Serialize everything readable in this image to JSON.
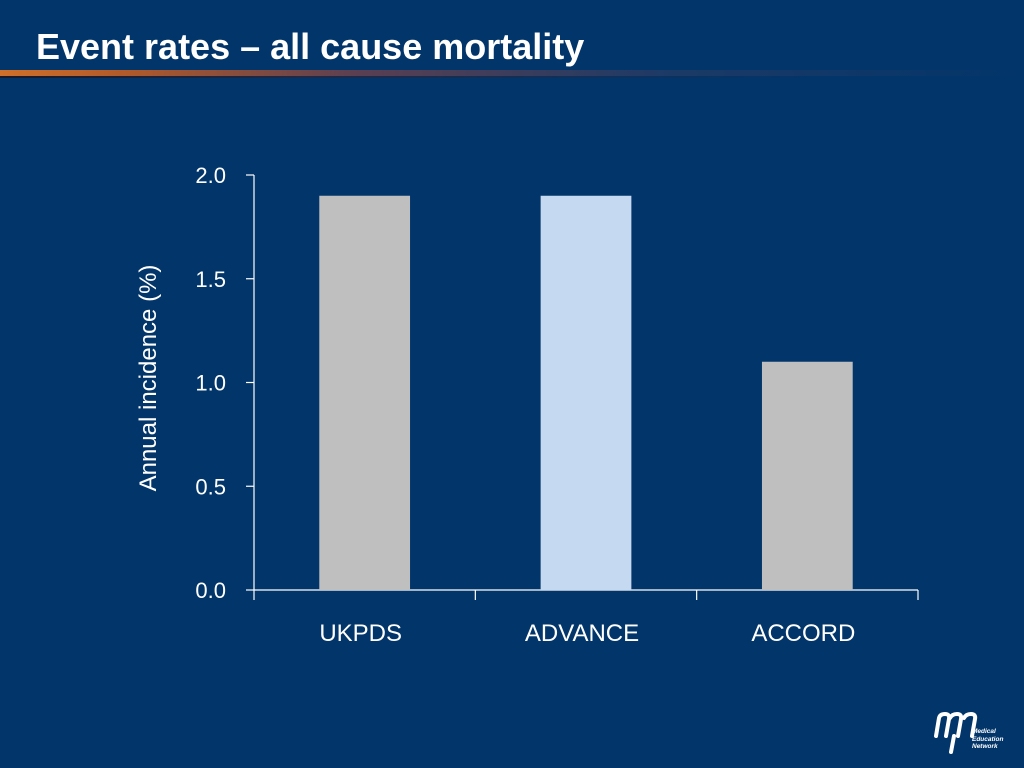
{
  "slide": {
    "title": "Event rates – all cause mortality"
  },
  "logo": {
    "mark": "mem",
    "lines": [
      "Medical",
      "Education",
      "Network"
    ]
  },
  "colors": {
    "background": "#02356a",
    "text": "#ffffff",
    "bar_gray": "#bfbfbf",
    "bar_highlight": "#c5d9f1",
    "axis": "#ffffff"
  },
  "chart_data": {
    "type": "bar",
    "title": "",
    "xlabel": "",
    "ylabel": "Annual incidence (%)",
    "categories": [
      "UKPDS",
      "ADVANCE",
      "ACCORD"
    ],
    "values": [
      1.9,
      1.9,
      1.1
    ],
    "bar_colors": [
      "#bfbfbf",
      "#c5d9f1",
      "#bfbfbf"
    ],
    "ylim": [
      0,
      2.0
    ],
    "yticks": [
      "0.0",
      "0.5",
      "1.0",
      "1.5",
      "2.0"
    ],
    "grid": false,
    "legend": "none"
  }
}
